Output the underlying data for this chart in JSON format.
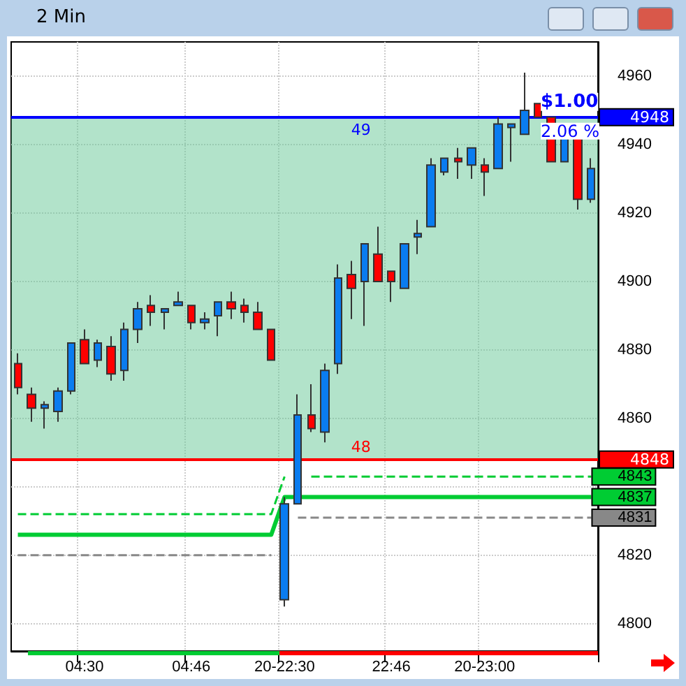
{
  "chart_data": {
    "type": "candlestick",
    "title": "2 Min",
    "categories": [
      null,
      null,
      null,
      null,
      null,
      "04:30",
      null,
      null,
      null,
      null,
      null,
      null,
      null,
      "04:46",
      null,
      null,
      null,
      null,
      null,
      null,
      "20-22:30",
      null,
      null,
      null,
      null,
      null,
      null,
      null,
      "22:46",
      null,
      null,
      null,
      null,
      null,
      null,
      "20-23:00",
      null,
      null,
      null,
      null,
      null,
      null,
      null,
      null
    ],
    "ohlc": [
      [
        4876,
        4879,
        4867,
        4869
      ],
      [
        4867,
        4869,
        4859,
        4863
      ],
      [
        4863,
        4865,
        4857,
        4864
      ],
      [
        4862,
        4869,
        4859,
        4868
      ],
      [
        4868,
        4882,
        4867,
        4882
      ],
      [
        4883,
        4886,
        4876,
        4876
      ],
      [
        4877,
        4883,
        4875,
        4882
      ],
      [
        4881,
        4884,
        4871,
        4873
      ],
      [
        4874,
        4888,
        4871,
        4886
      ],
      [
        4886,
        4894,
        4882,
        4892
      ],
      [
        4893,
        4896,
        4887,
        4891
      ],
      [
        4891,
        4892,
        4886,
        4892
      ],
      [
        4893,
        4897,
        4893,
        4894
      ],
      [
        4893,
        4893,
        4886,
        4888
      ],
      [
        4888,
        4891,
        4886,
        4889
      ],
      [
        4890,
        4894,
        4884,
        4894
      ],
      [
        4894,
        4897,
        4889,
        4892
      ],
      [
        4893,
        4895,
        4888,
        4891
      ],
      [
        4891,
        4894,
        4886,
        4886
      ],
      [
        4886,
        4886,
        4877,
        4877
      ],
      [
        4807,
        4837,
        4805,
        4835
      ],
      [
        4835,
        4867,
        4835,
        4861
      ],
      [
        4861,
        4870,
        4856,
        4857
      ],
      [
        4856,
        4876,
        4853,
        4874
      ],
      [
        4876,
        4905,
        4873,
        4901
      ],
      [
        4902,
        4906,
        4889,
        4898
      ],
      [
        4900,
        4911,
        4887,
        4911
      ],
      [
        4908,
        4916,
        4900,
        4900
      ],
      [
        4903,
        4903,
        4894,
        4900
      ],
      [
        4898,
        4911,
        4898,
        4911
      ],
      [
        4913,
        4918,
        4908,
        4914
      ],
      [
        4916,
        4936,
        4916,
        4934
      ],
      [
        4932,
        4936,
        4931,
        4936
      ],
      [
        4936,
        4939,
        4930,
        4935
      ],
      [
        4934,
        4939,
        4930,
        4939
      ],
      [
        4934,
        4936,
        4925,
        4932
      ],
      [
        4933,
        4948,
        4933,
        4946
      ],
      [
        4945,
        4946,
        4935,
        4946
      ],
      [
        4943,
        4961,
        4943,
        4950
      ],
      [
        4952,
        4952,
        4948,
        4948
      ],
      [
        4948,
        4948,
        4935,
        4935
      ],
      [
        4935,
        4942,
        4935,
        4942
      ],
      [
        4942,
        4942,
        4921,
        4924
      ],
      [
        4924,
        4936,
        4923,
        4933
      ]
    ],
    "colors": [
      "#ff0000",
      "#ff0000",
      "#0a7cf0",
      "#0a7cf0",
      "#0a7cf0",
      "#ff0000",
      "#0a7cf0",
      "#ff0000",
      "#0a7cf0",
      "#0a7cf0",
      "#ff0000",
      "#0a7cf0",
      "#0a7cf0",
      "#ff0000",
      "#0a7cf0",
      "#0a7cf0",
      "#ff0000",
      "#ff0000",
      "#ff0000",
      "#ff0000",
      "#0a7cf0",
      "#0a7cf0",
      "#ff0000",
      "#0a7cf0",
      "#0a7cf0",
      "#ff0000",
      "#0a7cf0",
      "#ff0000",
      "#ff0000",
      "#0a7cf0",
      "#0a7cf0",
      "#0a7cf0",
      "#0a7cf0",
      "#ff0000",
      "#0a7cf0",
      "#ff0000",
      "#0a7cf0",
      "#0a7cf0",
      "#0a7cf0",
      "#ff0000",
      "#ff0000",
      "#0a7cf0",
      "#ff0000",
      "#0a7cf0"
    ],
    "series": [
      {
        "type": "line",
        "color": "#00cc33",
        "line_style": "dashed",
        "value_labels": [
          null,
          null,
          null,
          null,
          null,
          null,
          null,
          null,
          null,
          null,
          null,
          null,
          null,
          null,
          null,
          null,
          null,
          null,
          null,
          null,
          null,
          null,
          null,
          null,
          null,
          null,
          null,
          null,
          null,
          null,
          null,
          null,
          null,
          null,
          null,
          null,
          null,
          null,
          null,
          null,
          null,
          null,
          null,
          "4843"
        ],
        "values": [
          4832,
          4832,
          4832,
          4832,
          4832,
          4832,
          4832,
          4832,
          4832,
          4832,
          4832,
          4832,
          4832,
          4832,
          4832,
          4832,
          4832,
          4832,
          4832,
          4832,
          4843,
          null,
          4843,
          4843,
          4843,
          4843,
          4843,
          4843,
          4843,
          4843,
          4843,
          4843,
          4843,
          4843,
          4843,
          4843,
          4843,
          4843,
          4843,
          4843,
          4843,
          4843,
          4843,
          4843
        ]
      },
      {
        "type": "line",
        "color": "#00cc33",
        "line_style": "solid",
        "value_labels": [
          null,
          null,
          null,
          null,
          null,
          null,
          null,
          null,
          null,
          null,
          null,
          null,
          null,
          null,
          null,
          null,
          null,
          null,
          null,
          null,
          null,
          null,
          null,
          null,
          null,
          null,
          null,
          null,
          null,
          null,
          null,
          null,
          null,
          null,
          null,
          null,
          null,
          null,
          null,
          null,
          null,
          null,
          null,
          "4837"
        ],
        "values": [
          4826,
          4826,
          4826,
          4826,
          4826,
          4826,
          4826,
          4826,
          4826,
          4826,
          4826,
          4826,
          4826,
          4826,
          4826,
          4826,
          4826,
          4826,
          4826,
          4826,
          4837,
          4837,
          4837,
          4837,
          4837,
          4837,
          4837,
          4837,
          4837,
          4837,
          4837,
          4837,
          4837,
          4837,
          4837,
          4837,
          4837,
          4837,
          4837,
          4837,
          4837,
          4837,
          4837,
          4837
        ]
      },
      {
        "type": "line",
        "color": "#888888",
        "line_style": "dashed",
        "value_labels": [
          null,
          null,
          null,
          null,
          null,
          null,
          null,
          null,
          null,
          null,
          null,
          null,
          null,
          null,
          null,
          null,
          null,
          null,
          null,
          null,
          null,
          null,
          null,
          null,
          null,
          null,
          null,
          null,
          null,
          null,
          null,
          null,
          null,
          null,
          null,
          null,
          null,
          null,
          null,
          null,
          null,
          null,
          null,
          "4831"
        ],
        "values": [
          4820,
          4820,
          4820,
          4820,
          4820,
          4820,
          4820,
          4820,
          4820,
          4820,
          4820,
          4820,
          4820,
          4820,
          4820,
          4820,
          4820,
          4820,
          4820,
          4820,
          null,
          4831,
          4831,
          4831,
          4831,
          4831,
          4831,
          4831,
          4831,
          4831,
          4831,
          4831,
          4831,
          4831,
          4831,
          4831,
          4831,
          4831,
          4831,
          4831,
          4831,
          4831,
          4831,
          4831
        ]
      }
    ],
    "ref_lines": [
      {
        "axis": "y",
        "value": 4948,
        "label": "4948",
        "color": "#0000ff"
      },
      {
        "axis": "y",
        "value": 4848,
        "label": "4848",
        "color": "#ff0000"
      }
    ],
    "bands": [
      {
        "axis": "y",
        "from": 4848,
        "to": 4948,
        "color": "#66c896"
      }
    ],
    "annotations": [
      "$1.00",
      "2.06 %",
      "49",
      "48"
    ],
    "ylim": [
      4792,
      4970
    ],
    "yticks": [
      4800,
      4820,
      {
        "value": 4840,
        "label": null
      },
      4860,
      4880,
      4900,
      4920,
      4940,
      4960
    ],
    "grid": true
  }
}
